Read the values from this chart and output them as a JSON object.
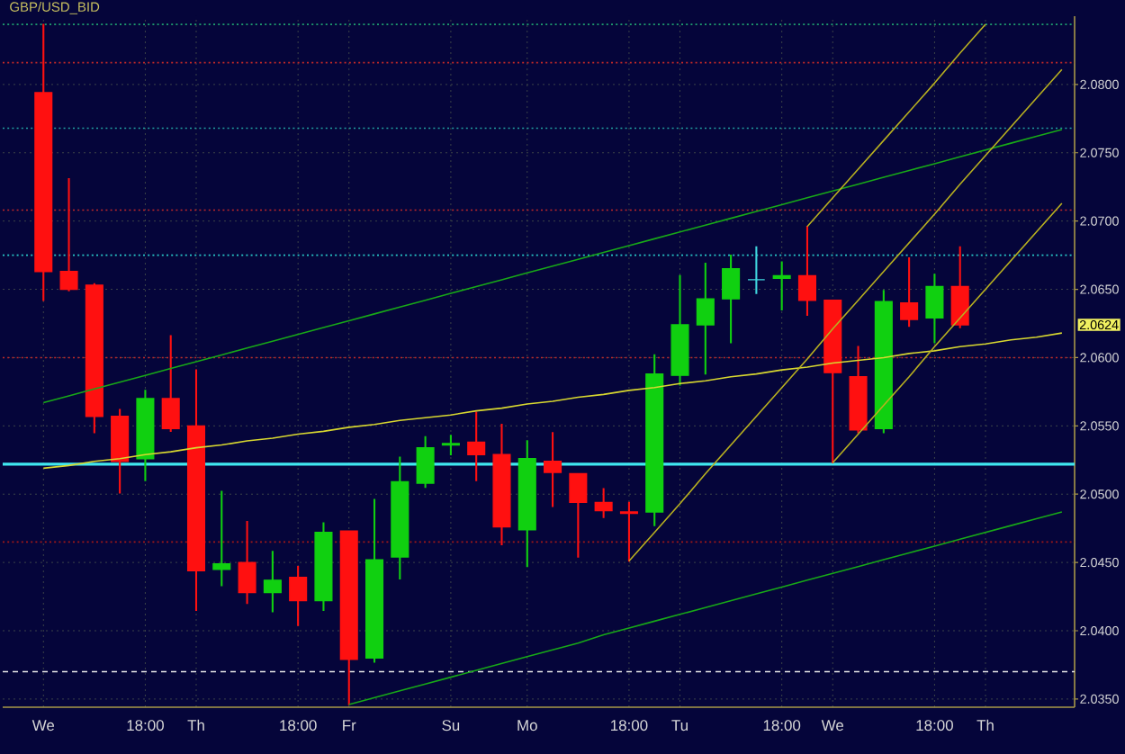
{
  "chart_data": {
    "type": "candlestick",
    "title": "GBP/USD_BID",
    "categories": [
      "We",
      null,
      null,
      null,
      "18:00",
      null,
      "Th",
      null,
      null,
      null,
      "18:00",
      null,
      "Fr",
      null,
      null,
      null,
      "Su",
      null,
      null,
      "Mo",
      null,
      null,
      null,
      "18:00",
      null,
      "Tu",
      null,
      null,
      null,
      "18:00",
      null,
      "We",
      null,
      null,
      null,
      "18:00",
      null,
      "Th",
      null,
      null,
      null
    ],
    "ohlc": [
      [
        2.0794,
        2.0844,
        2.0642,
        2.0663
      ],
      [
        2.0663,
        2.0731,
        2.0649,
        2.065
      ],
      [
        2.0653,
        2.0654,
        2.0545,
        2.0557
      ],
      [
        2.0557,
        2.0562,
        2.0501,
        2.0524
      ],
      [
        2.0526,
        2.0576,
        2.051,
        2.057
      ],
      [
        2.057,
        2.0616,
        2.0546,
        2.0548
      ],
      [
        2.055,
        2.0591,
        2.0415,
        2.0444
      ],
      [
        2.0445,
        2.0502,
        2.0433,
        2.0449
      ],
      [
        2.045,
        2.048,
        2.042,
        2.0428
      ],
      [
        2.0428,
        2.0458,
        2.0414,
        2.0437
      ],
      [
        2.0439,
        2.0447,
        2.0404,
        2.0422
      ],
      [
        2.0422,
        2.0479,
        2.0415,
        2.0472
      ],
      [
        2.0473,
        2.0473,
        2.0346,
        2.0379
      ],
      [
        2.038,
        2.0496,
        2.0377,
        2.0452
      ],
      [
        2.0454,
        2.0527,
        2.0438,
        2.0509
      ],
      [
        2.0508,
        2.0542,
        2.0505,
        2.0534
      ],
      [
        2.0536,
        2.0543,
        2.0529,
        2.0537
      ],
      [
        2.0538,
        2.056,
        2.051,
        2.0529
      ],
      [
        2.0529,
        2.0551,
        2.0463,
        2.0476
      ],
      [
        2.0474,
        2.0539,
        2.0447,
        2.0526
      ],
      [
        2.0524,
        2.0545,
        2.0491,
        2.0516
      ],
      [
        2.0515,
        2.0515,
        2.0454,
        2.0494
      ],
      [
        2.0494,
        2.0504,
        2.0483,
        2.0488
      ],
      [
        2.0487,
        2.0494,
        2.0451,
        2.0486
      ],
      [
        2.0487,
        2.0602,
        2.0477,
        2.0588
      ],
      [
        2.0587,
        2.066,
        2.058,
        2.0624
      ],
      [
        2.0624,
        2.0669,
        2.0588,
        2.0643
      ],
      [
        2.0643,
        2.0675,
        2.0611,
        2.0665
      ],
      [
        2.0657,
        2.0681,
        2.0647,
        2.0657
      ],
      [
        2.0658,
        2.067,
        2.0635,
        2.066
      ],
      [
        2.066,
        2.0696,
        2.0631,
        2.0642
      ],
      [
        2.0642,
        2.0642,
        2.0523,
        2.0589
      ],
      [
        2.0586,
        2.0608,
        2.0545,
        2.0547
      ],
      [
        2.0548,
        2.0649,
        2.0545,
        2.0641
      ],
      [
        2.064,
        2.0673,
        2.0623,
        2.0628
      ],
      [
        2.0629,
        2.0661,
        2.0611,
        2.0652
      ],
      [
        2.0652,
        2.0681,
        2.0622,
        2.0624
      ],
      null,
      null,
      null,
      null
    ],
    "colors": [
      "#ff1010",
      "#ff1010",
      "#ff1010",
      "#ff1010",
      "#10d010",
      "#ff1010",
      "#ff1010",
      "#10d010",
      "#ff1010",
      "#10d010",
      "#ff1010",
      "#10d010",
      "#ff1010",
      "#10d010",
      "#10d010",
      "#10d010",
      "#10d010",
      "#ff1010",
      "#ff1010",
      "#10d010",
      "#ff1010",
      "#ff1010",
      "#ff1010",
      "#ff1010",
      "#10d010",
      "#10d010",
      "#10d010",
      "#10d010",
      "#40d8e0",
      "#10d010",
      "#ff1010",
      "#ff1010",
      "#ff1010",
      "#10d010",
      "#ff1010",
      "#10d010",
      "#ff1010",
      null,
      null,
      null,
      null
    ],
    "ylim": [
      2.0344,
      2.085
    ],
    "yticks": [
      {
        "value": 2.035,
        "label": "2.0350"
      },
      {
        "value": 2.04,
        "label": "2.0400"
      },
      {
        "value": 2.045,
        "label": "2.0450"
      },
      {
        "value": 2.05,
        "label": "2.0500"
      },
      {
        "value": 2.055,
        "label": "2.0550"
      },
      {
        "value": 2.06,
        "label": "2.0600"
      },
      {
        "value": 2.065,
        "label": "2.0650"
      },
      {
        "value": 2.07,
        "label": "2.0700"
      },
      {
        "value": 2.075,
        "label": "2.0750"
      },
      {
        "value": 2.08,
        "label": "2.0800"
      }
    ],
    "grid": true,
    "ref_lines": [
      {
        "axis": "y",
        "value": 2.0844,
        "color": "#1f9f6f",
        "line_style": "dotted"
      },
      {
        "axis": "y",
        "value": 2.0816,
        "color": "#c02828",
        "line_style": "dotted"
      },
      {
        "axis": "y",
        "value": 2.0768,
        "color": "#22a0a0",
        "line_style": "dotted"
      },
      {
        "axis": "y",
        "value": 2.0708,
        "color": "#c02828",
        "line_style": "dotted"
      },
      {
        "axis": "y",
        "value": 2.0675,
        "color": "#28c8c8",
        "line_style": "dotted"
      },
      {
        "axis": "y",
        "value": 2.06,
        "color": "#c02828",
        "line_style": "dotted"
      },
      {
        "axis": "y",
        "value": 2.0522,
        "color": "#40e8f0",
        "line_style": "solid"
      },
      {
        "axis": "y",
        "value": 2.0465,
        "color": "#a01818",
        "line_style": "dotted"
      },
      {
        "axis": "y",
        "value": 2.037,
        "color": "#e8e8e8",
        "line_style": "dashed"
      }
    ],
    "series": [
      {
        "type": "line",
        "color": "#18a818",
        "values": [
          2.0567,
          2.0572,
          2.0577,
          2.0582,
          2.0587,
          2.0592,
          2.0597,
          2.0602,
          2.0607,
          2.0612,
          2.0617,
          2.0622,
          2.0627,
          2.0632,
          2.0637,
          2.0642,
          2.0647,
          2.0652,
          2.0657,
          2.0662,
          2.0667,
          2.0672,
          2.0677,
          2.0682,
          2.0687,
          2.0692,
          2.0697,
          2.0702,
          2.0707,
          2.0712,
          2.0717,
          2.0722,
          2.0727,
          2.0732,
          2.0737,
          2.0742,
          2.0747,
          2.0752,
          2.0757,
          2.0762,
          2.0767
        ]
      },
      {
        "type": "line",
        "color": "#18a818",
        "values": [
          null,
          null,
          null,
          null,
          null,
          null,
          null,
          null,
          null,
          null,
          null,
          null,
          2.0346,
          2.0351,
          2.0356,
          2.0361,
          2.0366,
          2.0371,
          2.0376,
          2.0381,
          2.0386,
          2.0391,
          2.0397,
          2.0402,
          2.0407,
          2.0412,
          2.0417,
          2.0422,
          2.0427,
          2.0432,
          2.0437,
          2.0442,
          2.0447,
          2.0452,
          2.0457,
          2.0462,
          2.0467,
          2.0472,
          2.0477,
          2.0482,
          2.0487
        ]
      },
      {
        "type": "line",
        "color": "#d8d830",
        "values": [
          2.0519,
          2.0521,
          2.0524,
          2.0526,
          2.0529,
          2.0531,
          2.0534,
          2.0536,
          2.0539,
          2.0541,
          2.0544,
          2.0546,
          2.0549,
          2.0551,
          2.0554,
          2.0556,
          2.0558,
          2.0561,
          2.0563,
          2.0566,
          2.0568,
          2.0571,
          2.0573,
          2.0576,
          2.0578,
          2.0581,
          2.0583,
          2.0586,
          2.0588,
          2.0591,
          2.0593,
          2.0596,
          2.0598,
          2.06,
          2.0603,
          2.0605,
          2.0608,
          2.061,
          2.0613,
          2.0615,
          2.0618
        ]
      },
      {
        "type": "line",
        "color": "#b8b020",
        "values": [
          null,
          null,
          null,
          null,
          null,
          null,
          null,
          null,
          null,
          null,
          null,
          null,
          null,
          null,
          null,
          null,
          null,
          null,
          null,
          null,
          null,
          null,
          null,
          2.0451,
          2.0472,
          2.0493,
          2.0515,
          2.0536,
          2.0557,
          2.0578,
          2.0599,
          2.0621,
          2.0642,
          2.0663,
          2.0684,
          2.0705,
          2.0727,
          2.0748,
          2.0769,
          2.079,
          2.0811
        ]
      },
      {
        "type": "line",
        "color": "#b8b020",
        "values": [
          null,
          null,
          null,
          null,
          null,
          null,
          null,
          null,
          null,
          null,
          null,
          null,
          null,
          null,
          null,
          null,
          null,
          null,
          null,
          null,
          null,
          null,
          null,
          null,
          null,
          null,
          null,
          null,
          null,
          null,
          2.0696,
          2.0717,
          2.0738,
          2.0759,
          2.078,
          2.0801,
          2.0823,
          2.0844,
          null,
          null,
          null
        ]
      },
      {
        "type": "line",
        "color": "#b8b020",
        "values": [
          null,
          null,
          null,
          null,
          null,
          null,
          null,
          null,
          null,
          null,
          null,
          null,
          null,
          null,
          null,
          null,
          null,
          null,
          null,
          null,
          null,
          null,
          null,
          null,
          null,
          null,
          null,
          null,
          null,
          null,
          null,
          2.0523,
          2.0544,
          2.0565,
          2.0586,
          2.0608,
          2.0629,
          2.065,
          2.0671,
          2.0692,
          2.0713
        ]
      }
    ],
    "annotations": [
      "2.0624"
    ]
  }
}
